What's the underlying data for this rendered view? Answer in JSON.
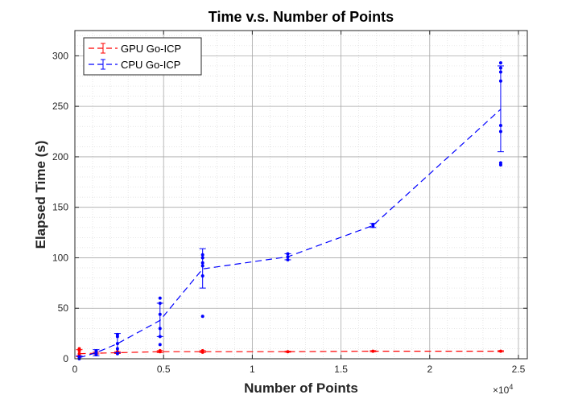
{
  "chart_data": {
    "type": "line",
    "title": "Time v.s. Number of Points",
    "xlabel": "Number of Points",
    "ylabel": "Elapsed Time (s)",
    "x_exponent_label": "×10",
    "x_exponent": "4",
    "xlim": [
      0,
      25500
    ],
    "ylim": [
      0,
      325
    ],
    "xticks": [
      0,
      5000,
      10000,
      15000,
      20000,
      25000
    ],
    "xtick_labels": [
      "0",
      "0.5",
      "1",
      "1.5",
      "2",
      "2.5"
    ],
    "yticks": [
      0,
      50,
      100,
      150,
      200,
      250,
      300
    ],
    "ytick_labels": [
      "0",
      "50",
      "100",
      "150",
      "200",
      "250",
      "300"
    ],
    "grid": true,
    "minor_grid": true,
    "legend_position": "top-left",
    "series": [
      {
        "name": "GPU Go-ICP",
        "color": "#ff0000",
        "x": [
          250,
          1200,
          2400,
          4800,
          7200,
          12000,
          16800,
          24000
        ],
        "mean": [
          5,
          5.5,
          6,
          7,
          7,
          7,
          7.5,
          7.5
        ],
        "err_low": [
          2,
          4.8,
          5.2,
          6.2,
          6.3,
          6.5,
          7,
          7
        ],
        "err_high": [
          9,
          6.5,
          7,
          8,
          8,
          7.5,
          8,
          8
        ],
        "points": [
          [
            250,
            3
          ],
          [
            250,
            5
          ],
          [
            250,
            8
          ],
          [
            250,
            10
          ],
          [
            1200,
            5
          ],
          [
            1200,
            6
          ],
          [
            2400,
            6
          ],
          [
            2400,
            7
          ],
          [
            4800,
            7
          ],
          [
            4800,
            8
          ],
          [
            7200,
            6.5
          ],
          [
            7200,
            8
          ],
          [
            12000,
            7
          ],
          [
            16800,
            7.5
          ],
          [
            24000,
            7.5
          ]
        ]
      },
      {
        "name": "CPU Go-ICP",
        "color": "#0000ff",
        "x": [
          250,
          1200,
          2400,
          4800,
          7200,
          12000,
          16800,
          24000
        ],
        "mean": [
          1,
          6,
          15,
          38,
          89,
          101,
          132,
          247
        ],
        "err_low": [
          0,
          3,
          6,
          22,
          70,
          98,
          130,
          205
        ],
        "err_high": [
          3,
          9,
          25,
          55,
          109,
          104,
          134,
          290
        ],
        "points": [
          [
            250,
            0
          ],
          [
            250,
            1
          ],
          [
            250,
            2
          ],
          [
            1200,
            4
          ],
          [
            1200,
            6
          ],
          [
            1200,
            8
          ],
          [
            2400,
            5
          ],
          [
            2400,
            10
          ],
          [
            2400,
            15
          ],
          [
            2400,
            22
          ],
          [
            2400,
            24
          ],
          [
            4800,
            14
          ],
          [
            4800,
            22
          ],
          [
            4800,
            30
          ],
          [
            4800,
            44
          ],
          [
            4800,
            55
          ],
          [
            4800,
            60
          ],
          [
            7200,
            42
          ],
          [
            7200,
            82
          ],
          [
            7200,
            92
          ],
          [
            7200,
            95
          ],
          [
            7200,
            100
          ],
          [
            7200,
            103
          ],
          [
            12000,
            98
          ],
          [
            12000,
            101
          ],
          [
            12000,
            104
          ],
          [
            16800,
            131
          ],
          [
            16800,
            133
          ],
          [
            24000,
            192
          ],
          [
            24000,
            194
          ],
          [
            24000,
            225
          ],
          [
            24000,
            231
          ],
          [
            24000,
            275
          ],
          [
            24000,
            284
          ],
          [
            24000,
            288
          ],
          [
            24000,
            293
          ]
        ]
      }
    ]
  }
}
